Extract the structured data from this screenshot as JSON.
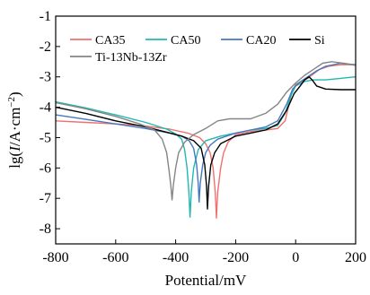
{
  "chart_data": {
    "type": "line",
    "title": "",
    "xlabel": "Potential/mV",
    "ylabel_parts": [
      "lg(",
      "I",
      "/A·cm",
      "−2",
      ")"
    ],
    "xlim": [
      -800,
      200
    ],
    "ylim": [
      -8.5,
      -1
    ],
    "xticks": [
      -800,
      -600,
      -400,
      -200,
      0,
      200
    ],
    "xtick_labels": [
      "-800",
      "-600",
      "-400",
      "-200",
      "0",
      "200"
    ],
    "yticks": [
      -1,
      -2,
      -3,
      -4,
      -5,
      -6,
      -7,
      -8
    ],
    "ytick_labels": [
      "-1",
      "-2",
      "-3",
      "-4",
      "-5",
      "-6",
      "-7",
      "-8"
    ],
    "grid": false,
    "legend_position": "top",
    "series": [
      {
        "name": "CA35",
        "color": "#f0706e",
        "points": [
          [
            -800,
            -4.45
          ],
          [
            -700,
            -4.5
          ],
          [
            -600,
            -4.55
          ],
          [
            -500,
            -4.62
          ],
          [
            -420,
            -4.72
          ],
          [
            -360,
            -4.85
          ],
          [
            -320,
            -5.0
          ],
          [
            -300,
            -5.2
          ],
          [
            -285,
            -5.5
          ],
          [
            -275,
            -6.0
          ],
          [
            -268,
            -6.8
          ],
          [
            -264,
            -7.65
          ],
          [
            -260,
            -6.8
          ],
          [
            -250,
            -6.0
          ],
          [
            -240,
            -5.5
          ],
          [
            -225,
            -5.15
          ],
          [
            -200,
            -4.9
          ],
          [
            -150,
            -4.8
          ],
          [
            -100,
            -4.75
          ],
          [
            -60,
            -4.7
          ],
          [
            -35,
            -4.45
          ],
          [
            -15,
            -3.6
          ],
          [
            0,
            -3.25
          ],
          [
            20,
            -3.15
          ],
          [
            40,
            -3.05
          ],
          [
            60,
            -2.9
          ],
          [
            80,
            -2.75
          ],
          [
            110,
            -2.65
          ],
          [
            150,
            -2.6
          ],
          [
            200,
            -2.6
          ]
        ]
      },
      {
        "name": "CA50",
        "color": "#22b8b0",
        "points": [
          [
            -800,
            -3.82
          ],
          [
            -700,
            -4.02
          ],
          [
            -600,
            -4.25
          ],
          [
            -500,
            -4.5
          ],
          [
            -430,
            -4.72
          ],
          [
            -400,
            -4.88
          ],
          [
            -380,
            -5.05
          ],
          [
            -370,
            -5.4
          ],
          [
            -362,
            -6.0
          ],
          [
            -356,
            -6.8
          ],
          [
            -352,
            -7.62
          ],
          [
            -348,
            -6.8
          ],
          [
            -340,
            -6.0
          ],
          [
            -325,
            -5.4
          ],
          [
            -300,
            -5.1
          ],
          [
            -250,
            -4.95
          ],
          [
            -200,
            -4.85
          ],
          [
            -150,
            -4.75
          ],
          [
            -100,
            -4.7
          ],
          [
            -60,
            -4.6
          ],
          [
            -35,
            -4.2
          ],
          [
            -15,
            -3.6
          ],
          [
            0,
            -3.3
          ],
          [
            30,
            -3.15
          ],
          [
            60,
            -3.1
          ],
          [
            100,
            -3.1
          ],
          [
            150,
            -3.05
          ],
          [
            200,
            -3.0
          ]
        ]
      },
      {
        "name": "CA20",
        "color": "#4478c0",
        "points": [
          [
            -800,
            -4.25
          ],
          [
            -700,
            -4.4
          ],
          [
            -600,
            -4.55
          ],
          [
            -500,
            -4.7
          ],
          [
            -420,
            -4.85
          ],
          [
            -380,
            -4.95
          ],
          [
            -355,
            -5.1
          ],
          [
            -340,
            -5.35
          ],
          [
            -330,
            -5.9
          ],
          [
            -325,
            -6.5
          ],
          [
            -322,
            -7.12
          ],
          [
            -318,
            -6.5
          ],
          [
            -310,
            -5.9
          ],
          [
            -300,
            -5.5
          ],
          [
            -285,
            -5.25
          ],
          [
            -260,
            -5.05
          ],
          [
            -200,
            -4.85
          ],
          [
            -150,
            -4.75
          ],
          [
            -100,
            -4.65
          ],
          [
            -60,
            -4.45
          ],
          [
            -30,
            -3.9
          ],
          [
            -10,
            -3.4
          ],
          [
            10,
            -3.2
          ],
          [
            40,
            -3.0
          ],
          [
            70,
            -2.8
          ],
          [
            100,
            -2.65
          ],
          [
            150,
            -2.55
          ],
          [
            200,
            -2.6
          ]
        ]
      },
      {
        "name": "Si",
        "color": "#000000",
        "points": [
          [
            -800,
            -4.0
          ],
          [
            -700,
            -4.2
          ],
          [
            -600,
            -4.45
          ],
          [
            -500,
            -4.65
          ],
          [
            -430,
            -4.82
          ],
          [
            -380,
            -4.95
          ],
          [
            -340,
            -5.1
          ],
          [
            -315,
            -5.35
          ],
          [
            -303,
            -5.9
          ],
          [
            -297,
            -6.6
          ],
          [
            -294,
            -7.35
          ],
          [
            -290,
            -6.6
          ],
          [
            -283,
            -5.9
          ],
          [
            -270,
            -5.5
          ],
          [
            -250,
            -5.2
          ],
          [
            -200,
            -4.95
          ],
          [
            -150,
            -4.85
          ],
          [
            -100,
            -4.75
          ],
          [
            -60,
            -4.55
          ],
          [
            -30,
            -4.1
          ],
          [
            -5,
            -3.55
          ],
          [
            15,
            -3.3
          ],
          [
            30,
            -3.1
          ],
          [
            45,
            -3.0
          ],
          [
            55,
            -3.1
          ],
          [
            70,
            -3.3
          ],
          [
            100,
            -3.4
          ],
          [
            150,
            -3.42
          ],
          [
            200,
            -3.42
          ]
        ]
      },
      {
        "name": "Ti-13Nb-13Zr",
        "color": "#858585",
        "points": [
          [
            -800,
            -3.85
          ],
          [
            -700,
            -4.05
          ],
          [
            -600,
            -4.3
          ],
          [
            -520,
            -4.55
          ],
          [
            -470,
            -4.75
          ],
          [
            -445,
            -5.05
          ],
          [
            -430,
            -5.5
          ],
          [
            -422,
            -6.1
          ],
          [
            -416,
            -6.6
          ],
          [
            -412,
            -7.05
          ],
          [
            -408,
            -6.6
          ],
          [
            -400,
            -6.0
          ],
          [
            -390,
            -5.5
          ],
          [
            -370,
            -5.15
          ],
          [
            -340,
            -4.9
          ],
          [
            -300,
            -4.7
          ],
          [
            -260,
            -4.45
          ],
          [
            -220,
            -4.38
          ],
          [
            -150,
            -4.38
          ],
          [
            -100,
            -4.2
          ],
          [
            -60,
            -3.9
          ],
          [
            -30,
            -3.5
          ],
          [
            0,
            -3.2
          ],
          [
            30,
            -2.95
          ],
          [
            60,
            -2.75
          ],
          [
            90,
            -2.55
          ],
          [
            120,
            -2.5
          ],
          [
            160,
            -2.55
          ],
          [
            200,
            -2.62
          ]
        ]
      }
    ]
  }
}
